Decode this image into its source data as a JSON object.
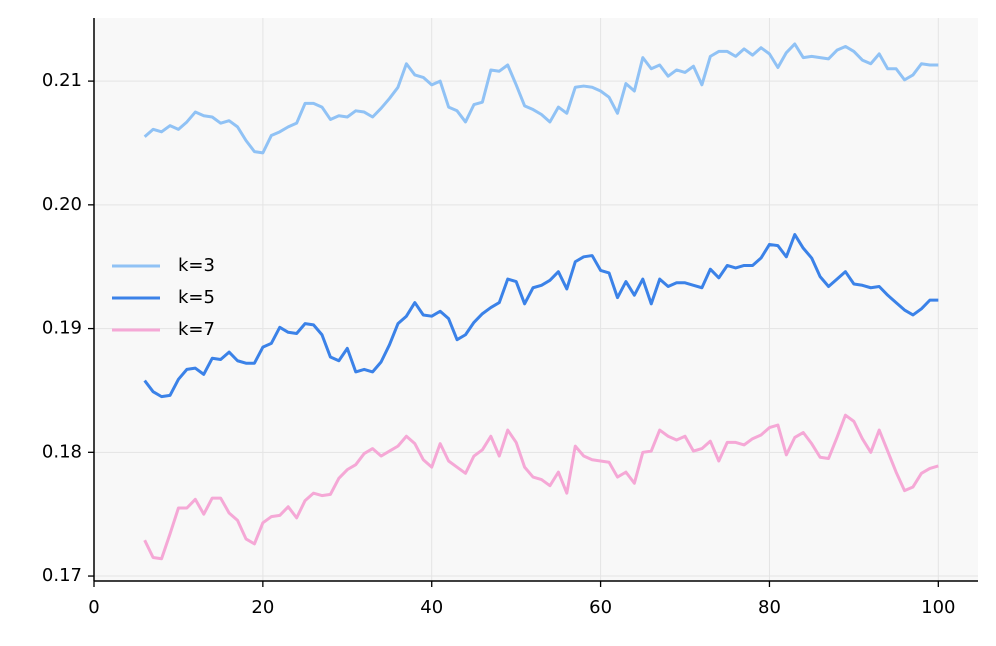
{
  "chart_data": {
    "type": "line",
    "x": [
      6,
      7,
      8,
      9,
      10,
      11,
      12,
      13,
      14,
      15,
      16,
      17,
      18,
      19,
      20,
      21,
      22,
      23,
      24,
      25,
      26,
      27,
      28,
      29,
      30,
      31,
      32,
      33,
      34,
      35,
      36,
      37,
      38,
      39,
      40,
      41,
      42,
      43,
      44,
      45,
      46,
      47,
      48,
      49,
      50,
      51,
      52,
      53,
      54,
      55,
      56,
      57,
      58,
      59,
      60,
      61,
      62,
      63,
      64,
      65,
      66,
      67,
      68,
      69,
      70,
      71,
      72,
      73,
      74,
      75,
      76,
      77,
      78,
      79,
      80,
      81,
      82,
      83,
      84,
      85,
      86,
      87,
      88,
      89,
      90,
      91,
      92,
      93,
      94,
      95,
      96,
      97,
      98,
      99,
      100
    ],
    "series": [
      {
        "name": "k=3",
        "color": "#90c2f5",
        "values": [
          0.2055,
          0.2061,
          0.2059,
          0.2064,
          0.2061,
          0.2067,
          0.2075,
          0.2072,
          0.2071,
          0.2066,
          0.2068,
          0.2063,
          0.2052,
          0.2043,
          0.2042,
          0.2056,
          0.2059,
          0.2063,
          0.2066,
          0.2082,
          0.2082,
          0.2079,
          0.2069,
          0.2072,
          0.2071,
          0.2076,
          0.2075,
          0.2071,
          0.2078,
          0.2086,
          0.2095,
          0.2114,
          0.2105,
          0.2103,
          0.2097,
          0.21,
          0.2079,
          0.2076,
          0.2067,
          0.2081,
          0.2083,
          0.2109,
          0.2108,
          0.2113,
          0.2097,
          0.208,
          0.2077,
          0.2073,
          0.2067,
          0.2079,
          0.2074,
          0.2095,
          0.2096,
          0.2095,
          0.2092,
          0.2087,
          0.2074,
          0.2098,
          0.2092,
          0.2119,
          0.211,
          0.2113,
          0.2104,
          0.2109,
          0.2107,
          0.2112,
          0.2097,
          0.212,
          0.2124,
          0.2124,
          0.212,
          0.2126,
          0.2121,
          0.2127,
          0.2122,
          0.2111,
          0.2123,
          0.213,
          0.2119,
          0.212,
          0.2119,
          0.2118,
          0.2125,
          0.2128,
          0.2124,
          0.2117,
          0.2114,
          0.2122,
          0.211,
          0.211,
          0.2101,
          0.2105,
          0.2114,
          0.2113,
          0.2113
        ]
      },
      {
        "name": "k=5",
        "color": "#3b82e8",
        "values": [
          0.1858,
          0.1849,
          0.1845,
          0.1846,
          0.1859,
          0.1867,
          0.1868,
          0.1863,
          0.1876,
          0.1875,
          0.1881,
          0.1874,
          0.1872,
          0.1872,
          0.1885,
          0.1888,
          0.1901,
          0.1897,
          0.1896,
          0.1904,
          0.1903,
          0.1895,
          0.1877,
          0.1874,
          0.1884,
          0.1865,
          0.1867,
          0.1865,
          0.1873,
          0.1887,
          0.1904,
          0.191,
          0.1921,
          0.1911,
          0.191,
          0.1914,
          0.1908,
          0.1891,
          0.1895,
          0.1905,
          0.1912,
          0.1917,
          0.1921,
          0.194,
          0.1938,
          0.192,
          0.1933,
          0.1935,
          0.1939,
          0.1946,
          0.1932,
          0.1954,
          0.1958,
          0.1959,
          0.1947,
          0.1945,
          0.1925,
          0.1938,
          0.1927,
          0.194,
          0.192,
          0.194,
          0.1934,
          0.1937,
          0.1937,
          0.1935,
          0.1933,
          0.1948,
          0.1941,
          0.1951,
          0.1949,
          0.1951,
          0.1951,
          0.1957,
          0.1968,
          0.1967,
          0.1958,
          0.1976,
          0.1965,
          0.1957,
          0.1942,
          0.1934,
          0.194,
          0.1946,
          0.1936,
          0.1935,
          0.1933,
          0.1934,
          0.1927,
          0.1921,
          0.1915,
          0.1911,
          0.1916,
          0.1923,
          0.1923
        ]
      },
      {
        "name": "k=7",
        "color": "#f5a8d6",
        "values": [
          0.1729,
          0.1715,
          0.1714,
          0.1734,
          0.1755,
          0.1755,
          0.1762,
          0.175,
          0.1763,
          0.1763,
          0.1751,
          0.1745,
          0.173,
          0.1726,
          0.1743,
          0.1748,
          0.1749,
          0.1756,
          0.1747,
          0.1761,
          0.1767,
          0.1765,
          0.1766,
          0.1779,
          0.1786,
          0.179,
          0.1799,
          0.1803,
          0.1797,
          0.1801,
          0.1805,
          0.1813,
          0.1807,
          0.1794,
          0.1788,
          0.1807,
          0.1793,
          0.1788,
          0.1783,
          0.1797,
          0.1802,
          0.1813,
          0.1797,
          0.1818,
          0.1808,
          0.1788,
          0.178,
          0.1778,
          0.1773,
          0.1784,
          0.1767,
          0.1805,
          0.1797,
          0.1794,
          0.1793,
          0.1792,
          0.178,
          0.1784,
          0.1775,
          0.18,
          0.1801,
          0.1818,
          0.1813,
          0.181,
          0.1813,
          0.1801,
          0.1803,
          0.1809,
          0.1793,
          0.1808,
          0.1808,
          0.1806,
          0.1811,
          0.1814,
          0.182,
          0.1822,
          0.1798,
          0.1812,
          0.1816,
          0.1807,
          0.1796,
          0.1795,
          0.1812,
          0.183,
          0.1825,
          0.1811,
          0.18,
          0.1818,
          0.1801,
          0.1784,
          0.1769,
          0.1772,
          0.1783,
          0.1787,
          0.1789
        ]
      }
    ],
    "xlim": [
      0,
      104.7
    ],
    "xticks": [
      0,
      20,
      40,
      60,
      80,
      100
    ],
    "ylim": [
      0.1696,
      0.2151
    ],
    "yticks": [
      0.17,
      0.18,
      0.19,
      {
        "value": 0.2,
        "label": "0.20"
      },
      0.21
    ],
    "grid": true,
    "legend": "left"
  }
}
